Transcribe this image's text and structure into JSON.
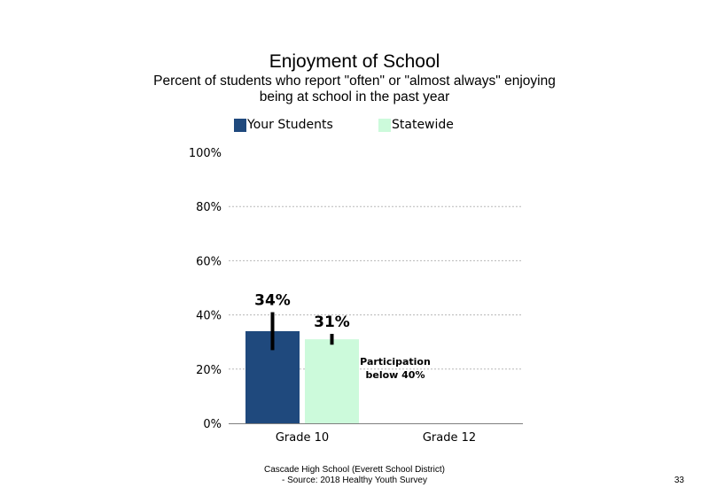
{
  "page": {
    "title": "Enjoyment  of School",
    "subtitle_line1": "Percent of students  who report \"often\" or \"almost  always\" enjoying",
    "subtitle_line2": "being at school in the past year",
    "footer_line1": "Cascade High School (Everett School District)",
    "footer_line2": "- Source: 2018 Healthy  Youth Survey",
    "page_number": "33"
  },
  "chart_data": {
    "type": "bar",
    "categories": [
      "Grade 10",
      "Grade 12"
    ],
    "series": [
      {
        "name": "Your Students",
        "color": "#1f497d",
        "values": [
          34,
          null
        ],
        "error": [
          [
            27,
            41
          ],
          null
        ],
        "labels": [
          "34%",
          ""
        ]
      },
      {
        "name": "Statewide",
        "color": "#ccfadb",
        "values": [
          31,
          null
        ],
        "error": [
          [
            29,
            33
          ],
          null
        ],
        "labels": [
          "31%",
          ""
        ]
      }
    ],
    "ylim": [
      0,
      100
    ],
    "yticks": [
      "0%",
      "20%",
      "40%",
      "60%",
      "80%",
      "100%"
    ],
    "ytick_values": [
      0,
      20,
      40,
      60,
      80,
      100
    ],
    "grid": true,
    "legend_position": "top",
    "annotations": [
      {
        "category": "Grade 12",
        "text_line1": "Participation",
        "text_line2": "below 40%"
      }
    ],
    "errorbar_color": "#000000"
  }
}
